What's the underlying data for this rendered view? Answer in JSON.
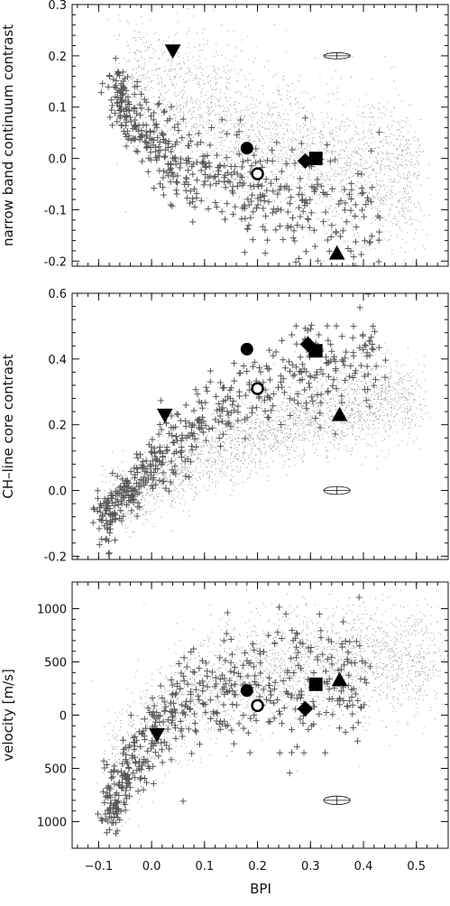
{
  "chart_data": [
    {
      "type": "scatter",
      "name": "narrow-band",
      "title": "",
      "xlabel": "BPI",
      "ylabel": "narrow band continuum contrast",
      "xlim": [
        -0.15,
        0.56
      ],
      "ylim": [
        -0.21,
        0.3
      ],
      "y_reversed": false,
      "yticks": [
        -0.2,
        -0.1,
        0.0,
        0.1,
        0.2,
        0.3
      ],
      "ytick_labels": [
        "-0.2",
        "-0.1",
        "0.0",
        "0.1",
        "0.2",
        "0.3"
      ],
      "xticks": [
        -0.1,
        0.0,
        0.1,
        0.2,
        0.3,
        0.4,
        0.5
      ],
      "show_xtick_labels": false,
      "grid": false,
      "background_cloud": {
        "description_points": [
          [
            -0.02,
            0.16
          ],
          [
            0.05,
            0.12
          ],
          [
            0.15,
            0.06
          ],
          [
            0.25,
            0.02
          ],
          [
            0.35,
            -0.01
          ],
          [
            0.45,
            -0.03
          ]
        ],
        "spread": 0.07
      },
      "plus_trend": [
        [
          -0.06,
          0.12
        ],
        [
          -0.02,
          0.06
        ],
        [
          0.03,
          0.0
        ],
        [
          0.08,
          -0.03
        ],
        [
          0.15,
          -0.05
        ],
        [
          0.22,
          -0.07
        ],
        [
          0.3,
          -0.09
        ],
        [
          0.38,
          -0.11
        ]
      ],
      "plus_spread": 0.05,
      "markers": [
        {
          "shape": "triangle-down",
          "x": 0.04,
          "y": 0.21
        },
        {
          "shape": "circle",
          "x": 0.18,
          "y": 0.02
        },
        {
          "shape": "circle-open",
          "x": 0.2,
          "y": -0.03
        },
        {
          "shape": "diamond",
          "x": 0.29,
          "y": -0.005
        },
        {
          "shape": "square",
          "x": 0.31,
          "y": 0.0
        },
        {
          "shape": "triangle-up",
          "x": 0.35,
          "y": -0.185
        }
      ],
      "error_ellipse": {
        "x": 0.35,
        "y": 0.2,
        "rx": 0.025,
        "ry": 0.006
      }
    },
    {
      "type": "scatter",
      "name": "ch-line",
      "title": "",
      "xlabel": "BPI",
      "ylabel": "CH–line core contrast",
      "xlim": [
        -0.15,
        0.56
      ],
      "ylim": [
        -0.21,
        0.6
      ],
      "y_reversed": false,
      "yticks": [
        -0.2,
        0.0,
        0.2,
        0.4,
        0.6
      ],
      "ytick_labels": [
        "-0.2",
        "0.0",
        "0.2",
        "0.4",
        "0.6"
      ],
      "xticks": [
        -0.1,
        0.0,
        0.1,
        0.2,
        0.3,
        0.4,
        0.5
      ],
      "show_xtick_labels": false,
      "grid": false,
      "background_cloud": {
        "description_points": [
          [
            -0.05,
            -0.02
          ],
          [
            0.0,
            0.03
          ],
          [
            0.08,
            0.1
          ],
          [
            0.16,
            0.15
          ],
          [
            0.25,
            0.2
          ],
          [
            0.35,
            0.24
          ],
          [
            0.45,
            0.28
          ]
        ],
        "spread": 0.06
      },
      "plus_trend": [
        [
          -0.08,
          -0.08
        ],
        [
          -0.04,
          0.0
        ],
        [
          0.0,
          0.08
        ],
        [
          0.06,
          0.16
        ],
        [
          0.12,
          0.24
        ],
        [
          0.2,
          0.3
        ],
        [
          0.28,
          0.36
        ],
        [
          0.38,
          0.4
        ]
      ],
      "plus_spread": 0.06,
      "markers": [
        {
          "shape": "triangle-down",
          "x": 0.025,
          "y": 0.23
        },
        {
          "shape": "circle",
          "x": 0.18,
          "y": 0.43
        },
        {
          "shape": "circle-open",
          "x": 0.2,
          "y": 0.31
        },
        {
          "shape": "diamond",
          "x": 0.295,
          "y": 0.445
        },
        {
          "shape": "square",
          "x": 0.31,
          "y": 0.425
        },
        {
          "shape": "triangle-up",
          "x": 0.355,
          "y": 0.23
        }
      ],
      "error_ellipse": {
        "x": 0.35,
        "y": 0.0,
        "rx": 0.025,
        "ry": 0.012
      }
    },
    {
      "type": "scatter",
      "name": "velocity",
      "title": "",
      "xlabel": "BPI",
      "ylabel": "velocity [m/s]",
      "xlim": [
        -0.15,
        0.56
      ],
      "ylim": [
        1250,
        -1250
      ],
      "y_reversed": true,
      "yticks": [
        1000,
        500,
        0,
        -500,
        -1000
      ],
      "ytick_labels": [
        "1000",
        "500",
        "0",
        "500",
        "1000"
      ],
      "xticks": [
        -0.1,
        0.0,
        0.1,
        0.2,
        0.3,
        0.4,
        0.5
      ],
      "xtick_labels": [
        "−0.1",
        "0.0",
        "0.1",
        "0.2",
        "0.3",
        "0.4",
        "0.5"
      ],
      "show_xtick_labels": true,
      "grid": false,
      "background_cloud": {
        "description_points": [
          [
            -0.05,
            400
          ],
          [
            0.0,
            100
          ],
          [
            0.05,
            -150
          ],
          [
            0.12,
            -300
          ],
          [
            0.2,
            -420
          ],
          [
            0.3,
            -480
          ],
          [
            0.4,
            -520
          ],
          [
            0.48,
            -540
          ]
        ],
        "spread": 260
      },
      "plus_trend": [
        [
          -0.07,
          800
        ],
        [
          -0.04,
          500
        ],
        [
          0.0,
          200
        ],
        [
          0.05,
          -50
        ],
        [
          0.1,
          -200
        ],
        [
          0.18,
          -300
        ],
        [
          0.26,
          -330
        ],
        [
          0.36,
          -260
        ]
      ],
      "plus_spread": 260,
      "markers": [
        {
          "shape": "triangle-down",
          "x": 0.01,
          "y": 180
        },
        {
          "shape": "circle",
          "x": 0.18,
          "y": -230
        },
        {
          "shape": "circle-open",
          "x": 0.2,
          "y": -90
        },
        {
          "shape": "diamond",
          "x": 0.29,
          "y": -60
        },
        {
          "shape": "square",
          "x": 0.31,
          "y": -290
        },
        {
          "shape": "triangle-up",
          "x": 0.355,
          "y": -330
        }
      ],
      "error_ellipse": {
        "x": 0.35,
        "y": 800,
        "rx": 0.025,
        "ry": 40
      }
    }
  ]
}
